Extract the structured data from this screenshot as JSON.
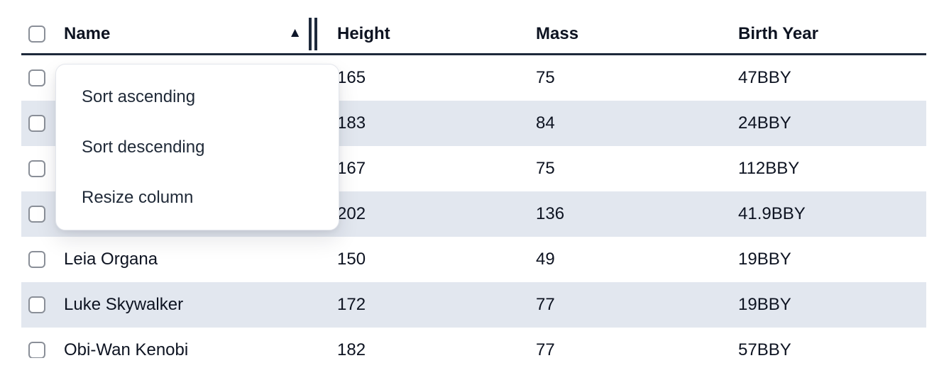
{
  "colors": {
    "header_border": "#1e293b",
    "row_stripe": "#e2e7ef",
    "text": "#0d1321",
    "menu_text": "#1f2937"
  },
  "icons": {
    "sort_ascending": "▲"
  },
  "table": {
    "columns": [
      {
        "id": "name",
        "label": "Name"
      },
      {
        "id": "height",
        "label": "Height"
      },
      {
        "id": "mass",
        "label": "Mass"
      },
      {
        "id": "birth_year",
        "label": "Birth Year"
      }
    ],
    "sort": {
      "column": "Name",
      "direction": "ascending"
    },
    "rows": [
      {
        "name": "",
        "height": "165",
        "mass": "75",
        "birth_year": "47BBY"
      },
      {
        "name": "",
        "height": "183",
        "mass": "84",
        "birth_year": "24BBY"
      },
      {
        "name": "",
        "height": "167",
        "mass": "75",
        "birth_year": "112BBY"
      },
      {
        "name": "",
        "height": "202",
        "mass": "136",
        "birth_year": "41.9BBY"
      },
      {
        "name": "Leia Organa",
        "height": "150",
        "mass": "49",
        "birth_year": "19BBY"
      },
      {
        "name": "Luke Skywalker",
        "height": "172",
        "mass": "77",
        "birth_year": "19BBY"
      },
      {
        "name": "Obi-Wan Kenobi",
        "height": "182",
        "mass": "77",
        "birth_year": "57BBY"
      }
    ]
  },
  "context_menu": {
    "items": [
      {
        "label": "Sort ascending"
      },
      {
        "label": "Sort descending"
      },
      {
        "label": "Resize column"
      }
    ]
  }
}
